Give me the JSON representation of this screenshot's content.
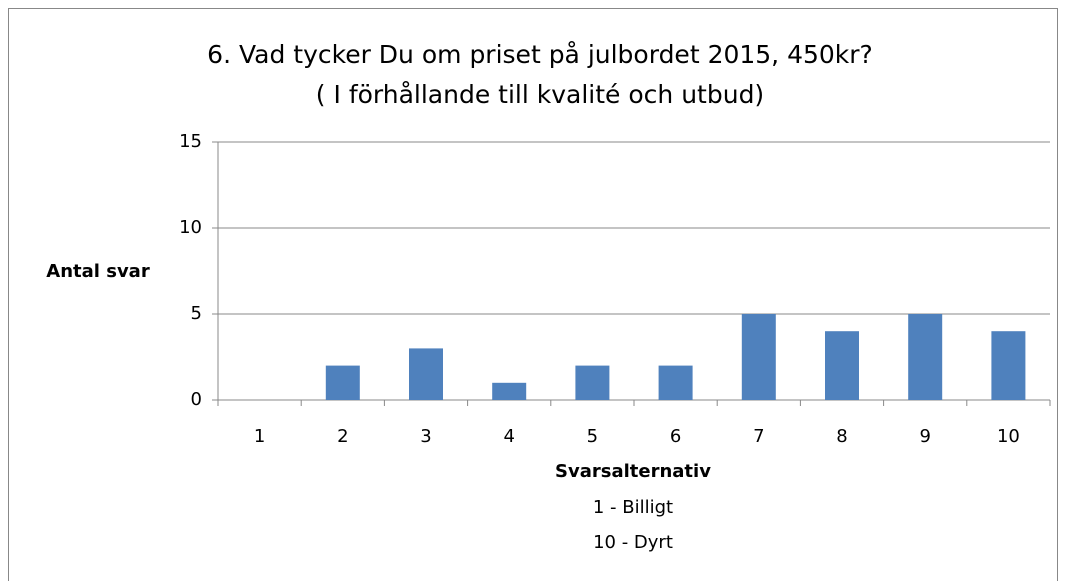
{
  "chart_data": {
    "type": "bar",
    "title": "6. Vad tycker Du om priset på julbordet 2015, 450kr?",
    "subtitle": "( I förhållande till kvalité och utbud)",
    "ylabel": "Antal svar",
    "xlabel": "Svarsalternativ",
    "annotations": [
      "1 - Billigt",
      "10 - Dyrt"
    ],
    "categories": [
      "1",
      "2",
      "3",
      "4",
      "5",
      "6",
      "7",
      "8",
      "9",
      "10"
    ],
    "values": [
      0,
      2,
      3,
      1,
      2,
      2,
      5,
      4,
      5,
      4
    ],
    "color": "#4f81bd",
    "ylim": [
      0,
      15
    ],
    "yticks": [
      0,
      5,
      10,
      15
    ],
    "grid": true
  }
}
